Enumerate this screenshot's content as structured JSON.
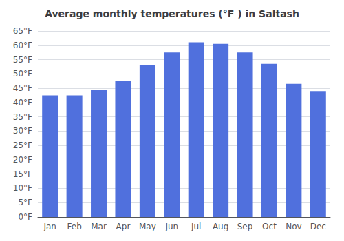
{
  "chart_data": {
    "type": "bar",
    "title": "Average monthly temperatures (°F ) in Saltash",
    "categories": [
      "Jan",
      "Feb",
      "Mar",
      "Apr",
      "May",
      "Jun",
      "Jul",
      "Aug",
      "Sep",
      "Oct",
      "Nov",
      "Dec"
    ],
    "values": [
      42.5,
      42.5,
      44.5,
      47.5,
      53.0,
      57.5,
      61.0,
      60.5,
      57.5,
      53.5,
      46.5,
      44.0
    ],
    "ylim": [
      0,
      65
    ],
    "yticks": [
      {
        "value": 0,
        "label": "0°F"
      },
      {
        "value": 5,
        "label": "5°F"
      },
      {
        "value": 10,
        "label": "10°F"
      },
      {
        "value": 15,
        "label": "15°F"
      },
      {
        "value": 20,
        "label": "20°F"
      },
      {
        "value": 25,
        "label": "25°F"
      },
      {
        "value": 30,
        "label": "30°F"
      },
      {
        "value": 35,
        "label": "35°F"
      },
      {
        "value": 40,
        "label": "40°F"
      },
      {
        "value": 45,
        "label": "45°F"
      },
      {
        "value": 50,
        "label": "50°F"
      },
      {
        "value": 55,
        "label": "55°F"
      },
      {
        "value": 60,
        "label": "60°F"
      },
      {
        "value": 65,
        "label": "65°F"
      }
    ],
    "grid": true
  }
}
